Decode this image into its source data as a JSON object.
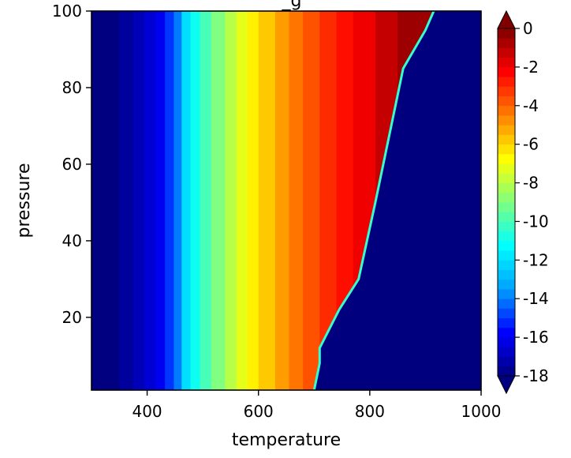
{
  "chart_data": {
    "type": "heatmap",
    "title": "_g",
    "xlabel": "temperature",
    "ylabel": "pressure",
    "xlim": [
      300,
      1000
    ],
    "ylim": [
      1,
      100
    ],
    "x_ticks": [
      400,
      600,
      800,
      1000
    ],
    "x_tick_labels": [
      "400",
      "600",
      "800",
      "1000"
    ],
    "y_ticks": [
      20,
      40,
      60,
      80,
      100
    ],
    "y_tick_labels": [
      "20",
      "40",
      "60",
      "80",
      "100"
    ],
    "colorbar": {
      "colormap": "jet",
      "range": [
        -18,
        0
      ],
      "extend": "both",
      "ticks": [
        0,
        -2,
        -4,
        -6,
        -8,
        -10,
        -12,
        -14,
        -16,
        -18
      ],
      "tick_labels": [
        "0",
        "-2",
        "-4",
        "-6",
        "-8",
        "-10",
        "-12",
        "-14",
        "-16",
        "-18"
      ],
      "color_stops": [
        "#000080",
        "#0000ff",
        "#00a0ff",
        "#00ffff",
        "#80ff80",
        "#ffff00",
        "#ff8000",
        "#ff0000",
        "#800000"
      ]
    },
    "boundary": {
      "description": "value drops to the minimum level beyond this temperature at each pressure",
      "pressure": [
        1,
        8,
        12,
        22,
        30,
        50,
        85,
        95,
        100
      ],
      "temperature": [
        700,
        710,
        710,
        745,
        780,
        810,
        860,
        900,
        915
      ]
    },
    "band_edges": [
      {
        "temperature": 300,
        "value": -18
      },
      {
        "temperature": 350,
        "value": -17.5
      },
      {
        "temperature": 375,
        "value": -17
      },
      {
        "temperature": 395,
        "value": -16.5
      },
      {
        "temperature": 415,
        "value": -16
      },
      {
        "temperature": 432,
        "value": -15
      },
      {
        "temperature": 448,
        "value": -14
      },
      {
        "temperature": 462,
        "value": -12
      },
      {
        "temperature": 478,
        "value": -11
      },
      {
        "temperature": 495,
        "value": -10
      },
      {
        "temperature": 515,
        "value": -9
      },
      {
        "temperature": 540,
        "value": -8
      },
      {
        "temperature": 560,
        "value": -7.2
      },
      {
        "temperature": 580,
        "value": -6.5
      },
      {
        "temperature": 600,
        "value": -5.8
      },
      {
        "temperature": 630,
        "value": -5
      },
      {
        "temperature": 655,
        "value": -4.3
      },
      {
        "temperature": 680,
        "value": -3.7
      },
      {
        "temperature": 710,
        "value": -3
      },
      {
        "temperature": 740,
        "value": -2.5
      },
      {
        "temperature": 770,
        "value": -2
      },
      {
        "temperature": 810,
        "value": -1.2
      },
      {
        "temperature": 850,
        "value": -0.5
      }
    ]
  }
}
